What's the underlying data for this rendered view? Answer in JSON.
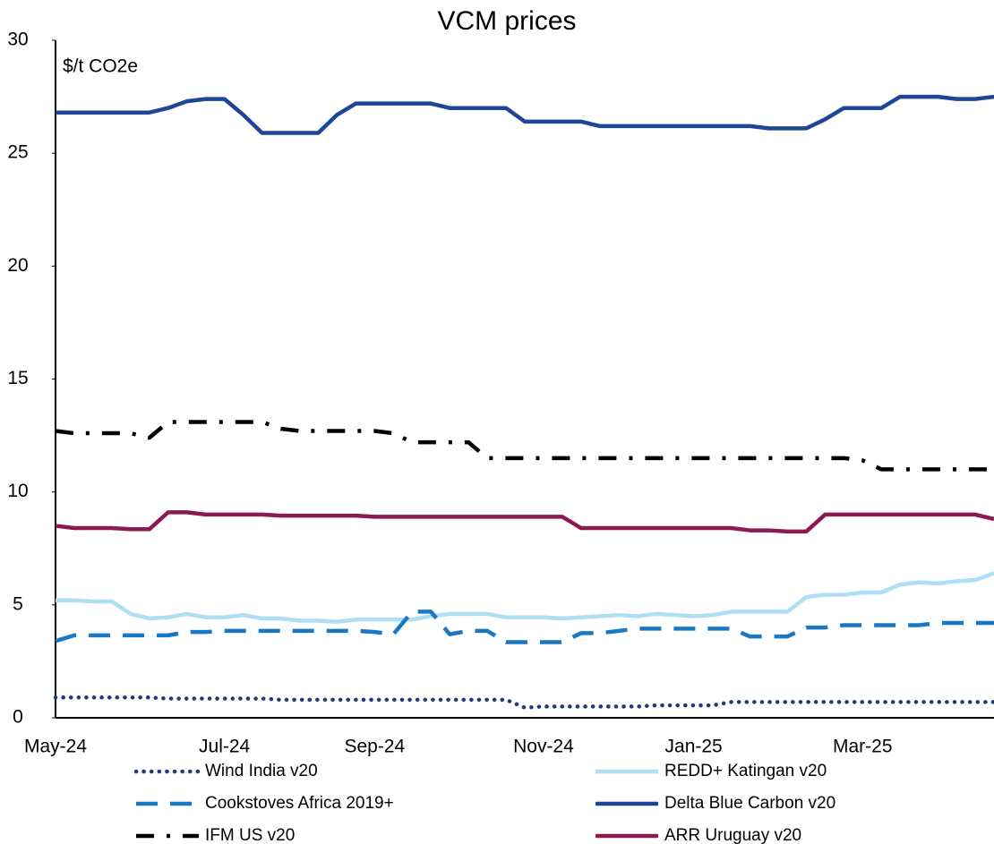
{
  "chart_data": {
    "type": "line",
    "title": "VCM prices",
    "y_label": "$/t CO2e",
    "categories": [
      "May-24",
      null,
      null,
      null,
      null,
      null,
      null,
      null,
      null,
      "Jul-24",
      null,
      null,
      null,
      null,
      null,
      null,
      null,
      "Sep-24",
      null,
      null,
      null,
      null,
      null,
      null,
      null,
      null,
      "Nov-24",
      null,
      null,
      null,
      null,
      null,
      null,
      null,
      "Jan-25",
      null,
      null,
      null,
      null,
      null,
      null,
      null,
      null,
      "Mar-25",
      null,
      null,
      null,
      null,
      null,
      null,
      null
    ],
    "ylim": [
      0,
      30
    ],
    "yticks": [
      0,
      5,
      10,
      15,
      20,
      25,
      30
    ],
    "grid": false,
    "series": [
      {
        "name": "Wind India v20",
        "color": "#1f3a7a",
        "style": "dotted",
        "values": [
          0.9,
          0.9,
          0.9,
          0.9,
          0.9,
          0.9,
          0.85,
          0.85,
          0.85,
          0.85,
          0.85,
          0.85,
          0.8,
          0.8,
          0.8,
          0.8,
          0.8,
          0.8,
          0.8,
          0.8,
          0.8,
          0.8,
          0.8,
          0.8,
          0.8,
          0.45,
          0.5,
          0.5,
          0.5,
          0.5,
          0.5,
          0.5,
          0.55,
          0.55,
          0.55,
          0.55,
          0.7,
          0.7,
          0.7,
          0.7,
          0.7,
          0.7,
          0.7,
          0.7,
          0.7,
          0.7,
          0.7,
          0.7,
          0.7,
          0.7,
          0.7
        ]
      },
      {
        "name": "REDD+ Katingan v20",
        "color": "#b0def3",
        "style": "solid",
        "values": [
          5.2,
          5.2,
          5.15,
          5.15,
          4.6,
          4.4,
          4.45,
          4.6,
          4.45,
          4.45,
          4.55,
          4.4,
          4.4,
          4.3,
          4.3,
          4.25,
          4.35,
          4.35,
          4.35,
          4.35,
          4.5,
          4.6,
          4.6,
          4.6,
          4.45,
          4.45,
          4.45,
          4.4,
          4.45,
          4.5,
          4.55,
          4.5,
          4.6,
          4.55,
          4.5,
          4.55,
          4.7,
          4.7,
          4.7,
          4.7,
          5.35,
          5.45,
          5.45,
          5.55,
          5.55,
          5.9,
          6.0,
          5.95,
          6.05,
          6.1,
          6.4
        ]
      },
      {
        "name": "Cookstoves Africa 2019+",
        "color": "#1a78c2",
        "style": "dashed",
        "values": [
          3.4,
          3.65,
          3.65,
          3.65,
          3.65,
          3.65,
          3.65,
          3.8,
          3.8,
          3.85,
          3.85,
          3.85,
          3.85,
          3.85,
          3.85,
          3.85,
          3.85,
          3.8,
          3.7,
          4.7,
          4.7,
          3.7,
          3.85,
          3.85,
          3.35,
          3.35,
          3.35,
          3.35,
          3.75,
          3.75,
          3.85,
          3.95,
          3.95,
          3.95,
          3.95,
          3.95,
          3.95,
          3.6,
          3.6,
          3.6,
          4.0,
          4.0,
          4.1,
          4.1,
          4.1,
          4.1,
          4.1,
          4.2,
          4.2,
          4.2,
          4.2
        ]
      },
      {
        "name": "Delta Blue Carbon v20",
        "color": "#1f4696",
        "style": "solid",
        "values": [
          26.8,
          26.8,
          26.8,
          26.8,
          26.8,
          26.8,
          27.0,
          27.3,
          27.4,
          27.4,
          26.7,
          25.9,
          25.9,
          25.9,
          25.9,
          26.7,
          27.2,
          27.2,
          27.2,
          27.2,
          27.2,
          27.0,
          27.0,
          27.0,
          27.0,
          26.4,
          26.4,
          26.4,
          26.4,
          26.2,
          26.2,
          26.2,
          26.2,
          26.2,
          26.2,
          26.2,
          26.2,
          26.2,
          26.1,
          26.1,
          26.1,
          26.5,
          27.0,
          27.0,
          27.0,
          27.5,
          27.5,
          27.5,
          27.4,
          27.4,
          27.5
        ]
      },
      {
        "name": "IFM US v20",
        "color": "#000000",
        "style": "dashdot",
        "values": [
          12.7,
          12.6,
          12.6,
          12.6,
          12.6,
          12.4,
          13.1,
          13.1,
          13.1,
          13.1,
          13.1,
          13.1,
          12.8,
          12.7,
          12.7,
          12.7,
          12.7,
          12.7,
          12.6,
          12.2,
          12.2,
          12.2,
          12.2,
          11.5,
          11.5,
          11.5,
          11.5,
          11.5,
          11.5,
          11.5,
          11.5,
          11.5,
          11.5,
          11.5,
          11.5,
          11.5,
          11.5,
          11.5,
          11.5,
          11.5,
          11.5,
          11.5,
          11.5,
          11.4,
          11.0,
          11.0,
          11.0,
          11.0,
          11.0,
          11.0,
          11.0
        ]
      },
      {
        "name": "ARR Uruguay v20",
        "color": "#8b1a50",
        "style": "solid",
        "values": [
          8.5,
          8.4,
          8.4,
          8.4,
          8.35,
          8.35,
          9.1,
          9.1,
          9.0,
          9.0,
          9.0,
          9.0,
          8.95,
          8.95,
          8.95,
          8.95,
          8.95,
          8.9,
          8.9,
          8.9,
          8.9,
          8.9,
          8.9,
          8.9,
          8.9,
          8.9,
          8.9,
          8.9,
          8.4,
          8.4,
          8.4,
          8.4,
          8.4,
          8.4,
          8.4,
          8.4,
          8.4,
          8.3,
          8.3,
          8.25,
          8.25,
          9.0,
          9.0,
          9.0,
          9.0,
          9.0,
          9.0,
          9.0,
          9.0,
          9.0,
          8.8
        ]
      }
    ]
  }
}
